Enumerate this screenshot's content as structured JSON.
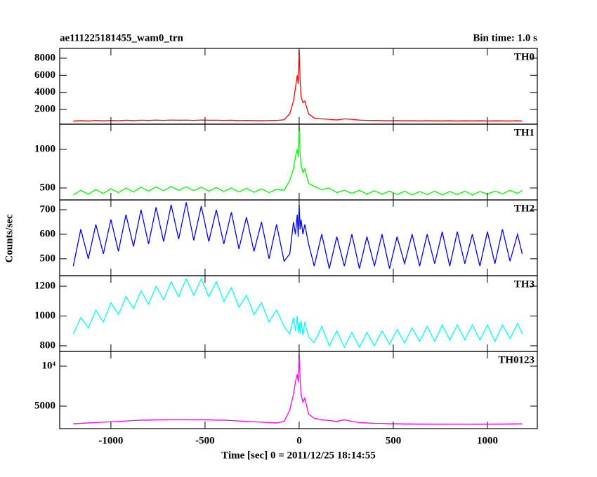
{
  "chart_data": [
    {
      "type": "line",
      "title": "ae111225181455_wam0_trn",
      "subtitle": "Bin time: 1.0 s",
      "xlim": [
        -1272,
        1265
      ],
      "ylim": [
        286,
        9143
      ],
      "yticks": [
        2000,
        4000,
        6000,
        8000
      ],
      "x": [
        -1200,
        -1160,
        -1120,
        -1080,
        -1040,
        -1000,
        -960,
        -920,
        -880,
        -840,
        -800,
        -760,
        -720,
        -680,
        -640,
        -600,
        -560,
        -520,
        -480,
        -440,
        -400,
        -360,
        -320,
        -280,
        -240,
        -200,
        -160,
        -120,
        -80,
        -50,
        -30,
        -20,
        -10,
        -5,
        0,
        5,
        10,
        20,
        30,
        50,
        80,
        120,
        160,
        200,
        240,
        280,
        320,
        360,
        400,
        440,
        480,
        520,
        560,
        600,
        640,
        680,
        720,
        760,
        800,
        840,
        880,
        920,
        960,
        1000,
        1040,
        1080,
        1120,
        1160,
        1185
      ],
      "series": [
        {
          "name": "TH0",
          "color": "#ff0000",
          "values": [
            650,
            700,
            660,
            720,
            680,
            710,
            690,
            740,
            700,
            750,
            720,
            760,
            730,
            770,
            740,
            760,
            730,
            770,
            740,
            750,
            720,
            740,
            700,
            720,
            700,
            690,
            710,
            720,
            800,
            1500,
            3000,
            4500,
            6000,
            5000,
            9000,
            5500,
            3500,
            2800,
            3000,
            1500,
            1000,
            900,
            850,
            780,
            900,
            850,
            760,
            730,
            720,
            700,
            690,
            700,
            680,
            690,
            670,
            690,
            680,
            670,
            690,
            660,
            680,
            670,
            690,
            660,
            680,
            670,
            660,
            690,
            650
          ]
        }
      ]
    },
    {
      "type": "line",
      "xlim": [
        -1272,
        1265
      ],
      "ylim": [
        345,
        1327
      ],
      "yticks": [
        500,
        1000
      ],
      "x": [
        -1200,
        -1160,
        -1120,
        -1080,
        -1040,
        -1000,
        -960,
        -920,
        -880,
        -840,
        -800,
        -760,
        -720,
        -680,
        -640,
        -600,
        -560,
        -520,
        -480,
        -440,
        -400,
        -360,
        -320,
        -280,
        -240,
        -200,
        -160,
        -120,
        -80,
        -50,
        -30,
        -20,
        -10,
        -5,
        0,
        5,
        10,
        20,
        30,
        50,
        80,
        120,
        160,
        200,
        240,
        280,
        320,
        360,
        400,
        440,
        480,
        520,
        560,
        600,
        640,
        680,
        720,
        760,
        800,
        840,
        880,
        920,
        960,
        1000,
        1040,
        1080,
        1120,
        1160,
        1185
      ],
      "series": [
        {
          "name": "TH1",
          "color": "#00ff00",
          "values": [
            410,
            470,
            420,
            480,
            430,
            490,
            440,
            500,
            450,
            510,
            460,
            515,
            465,
            520,
            470,
            515,
            465,
            510,
            460,
            505,
            455,
            500,
            450,
            495,
            445,
            490,
            440,
            485,
            470,
            600,
            750,
            900,
            1000,
            900,
            1300,
            950,
            800,
            700,
            750,
            560,
            520,
            480,
            500,
            440,
            470,
            430,
            470,
            420,
            465,
            420,
            460,
            415,
            460,
            410,
            455,
            415,
            460,
            410,
            455,
            415,
            460,
            410,
            455,
            420,
            460,
            425,
            470,
            430,
            470
          ]
        }
      ]
    },
    {
      "type": "line",
      "ylabel": "Counts/sec",
      "xlim": [
        -1272,
        1265
      ],
      "ylim": [
        431,
        740
      ],
      "yticks": [
        500,
        600,
        700
      ],
      "x": [
        -1200,
        -1160,
        -1120,
        -1080,
        -1040,
        -1000,
        -960,
        -920,
        -880,
        -840,
        -800,
        -760,
        -720,
        -680,
        -640,
        -600,
        -560,
        -520,
        -480,
        -440,
        -400,
        -360,
        -320,
        -280,
        -240,
        -200,
        -160,
        -120,
        -80,
        -50,
        -30,
        -20,
        -10,
        -5,
        0,
        5,
        10,
        20,
        30,
        50,
        80,
        120,
        160,
        200,
        240,
        280,
        320,
        360,
        400,
        440,
        480,
        520,
        560,
        600,
        640,
        680,
        720,
        760,
        800,
        840,
        880,
        920,
        960,
        1000,
        1040,
        1080,
        1120,
        1160,
        1185
      ],
      "series": [
        {
          "name": "TH2",
          "color": "#0000ff",
          "values": [
            470,
            620,
            500,
            640,
            520,
            660,
            530,
            680,
            550,
            700,
            560,
            710,
            570,
            720,
            580,
            730,
            575,
            715,
            570,
            700,
            560,
            690,
            540,
            670,
            530,
            650,
            500,
            640,
            490,
            520,
            650,
            600,
            680,
            590,
            720,
            620,
            660,
            600,
            640,
            560,
            470,
            600,
            460,
            590,
            470,
            600,
            460,
            590,
            470,
            600,
            460,
            590,
            480,
            600,
            470,
            600,
            480,
            610,
            470,
            610,
            480,
            600,
            470,
            610,
            480,
            620,
            490,
            600,
            520
          ]
        }
      ]
    },
    {
      "type": "line",
      "xlim": [
        -1272,
        1265
      ],
      "ylim": [
        762,
        1271
      ],
      "yticks": [
        800,
        1000,
        1200
      ],
      "x": [
        -1200,
        -1160,
        -1120,
        -1080,
        -1040,
        -1000,
        -960,
        -920,
        -880,
        -840,
        -800,
        -760,
        -720,
        -680,
        -640,
        -600,
        -560,
        -520,
        -480,
        -440,
        -400,
        -360,
        -320,
        -280,
        -240,
        -200,
        -160,
        -120,
        -80,
        -50,
        -30,
        -20,
        -10,
        -5,
        0,
        5,
        10,
        20,
        30,
        50,
        80,
        120,
        160,
        200,
        240,
        280,
        320,
        360,
        400,
        440,
        480,
        520,
        560,
        600,
        640,
        680,
        720,
        760,
        800,
        840,
        880,
        920,
        960,
        1000,
        1040,
        1080,
        1120,
        1160,
        1185
      ],
      "series": [
        {
          "name": "TH3",
          "color": "#00ffff",
          "values": [
            880,
            990,
            920,
            1040,
            960,
            1090,
            1010,
            1130,
            1050,
            1170,
            1080,
            1200,
            1110,
            1230,
            1130,
            1250,
            1140,
            1250,
            1130,
            1230,
            1100,
            1190,
            1060,
            1140,
            1010,
            1090,
            960,
            1040,
            930,
            880,
            990,
            900,
            1000,
            890,
            960,
            880,
            970,
            870,
            960,
            860,
            820,
            930,
            800,
            900,
            790,
            890,
            790,
            890,
            800,
            900,
            810,
            910,
            820,
            920,
            830,
            930,
            830,
            940,
            840,
            940,
            840,
            940,
            840,
            940,
            830,
            940,
            850,
            950,
            880
          ]
        }
      ]
    },
    {
      "type": "line",
      "xlabel": "Time [sec] 0 = 2011/12/25 18:14:55",
      "xlim": [
        -1272,
        1265
      ],
      "xticks": [
        -1000,
        -500,
        0,
        500,
        1000
      ],
      "ylim": [
        2193,
        11842
      ],
      "yticks": [
        5000,
        {
          "value": 10000,
          "label": "10⁴"
        }
      ],
      "x": [
        -1200,
        -1160,
        -1120,
        -1080,
        -1040,
        -1000,
        -960,
        -920,
        -880,
        -840,
        -800,
        -760,
        -720,
        -680,
        -640,
        -600,
        -560,
        -520,
        -480,
        -440,
        -400,
        -360,
        -320,
        -280,
        -240,
        -200,
        -160,
        -120,
        -80,
        -50,
        -30,
        -20,
        -10,
        -5,
        0,
        5,
        10,
        20,
        30,
        50,
        80,
        120,
        160,
        200,
        240,
        280,
        320,
        360,
        400,
        440,
        480,
        520,
        560,
        600,
        640,
        680,
        720,
        760,
        800,
        840,
        880,
        920,
        960,
        1000,
        1040,
        1080,
        1120,
        1160,
        1185
      ],
      "series": [
        {
          "name": "TH0123",
          "color": "#ff00ff",
          "values": [
            2800,
            2850,
            2900,
            2950,
            3000,
            3050,
            3100,
            3150,
            3200,
            3250,
            3250,
            3300,
            3300,
            3350,
            3350,
            3350,
            3300,
            3350,
            3300,
            3250,
            3250,
            3200,
            3150,
            3100,
            3050,
            3000,
            2950,
            2900,
            3100,
            4500,
            6500,
            8000,
            9000,
            8000,
            11500,
            8500,
            6500,
            5500,
            6000,
            4000,
            3500,
            3300,
            3200,
            3100,
            3300,
            3100,
            2950,
            2900,
            2850,
            2850,
            2800,
            2800,
            2780,
            2780,
            2760,
            2760,
            2750,
            2750,
            2750,
            2740,
            2740,
            2740,
            2750,
            2750,
            2760,
            2770,
            2780,
            2790,
            2800
          ]
        }
      ]
    }
  ]
}
